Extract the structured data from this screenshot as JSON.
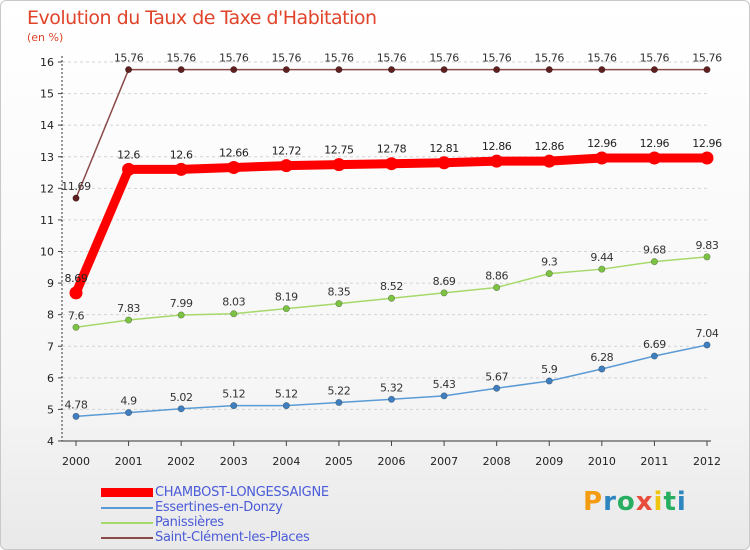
{
  "header": {
    "title": "Evolution du Taux de Taxe d'Habitation",
    "subtitle": "(en %)"
  },
  "brand": {
    "logo_text": "Proxiti",
    "logo_colors": [
      "#f39c12",
      "#2e86c1",
      "#27ae60",
      "#e74c3c",
      "#f1c40f",
      "#27ae60",
      "#2e86c1"
    ]
  },
  "chart_data": {
    "type": "line",
    "title": "Evolution du Taux de Taxe d'Habitation",
    "ylabel": "(en %)",
    "xlabel": "",
    "x": [
      "2000",
      "2001",
      "2002",
      "2003",
      "2004",
      "2005",
      "2006",
      "2007",
      "2008",
      "2009",
      "2010",
      "2011",
      "2012"
    ],
    "ylim": [
      4,
      16
    ],
    "yticks": [
      "4",
      "5",
      "6",
      "7",
      "8",
      "9",
      "10",
      "11",
      "12",
      "13",
      "14",
      "15",
      "16"
    ],
    "grid": "horizontal dashed",
    "legend_position": "bottom-left",
    "series": [
      {
        "name": "CHAMBOST-LONGESSAIGNE",
        "color": "#ff0000",
        "emphasis": "thick",
        "values": [
          8.69,
          12.6,
          12.6,
          12.66,
          12.72,
          12.75,
          12.78,
          12.81,
          12.86,
          12.86,
          12.96,
          12.96,
          12.96
        ],
        "labels": [
          "8.69",
          "12.6",
          "12.6",
          "12.66",
          "12.72",
          "12.75",
          "12.78",
          "12.81",
          "12.86",
          "12.86",
          "12.96",
          "12.96",
          "12.96"
        ]
      },
      {
        "name": "Essertines-en-Donzy",
        "color": "#5b9bd5",
        "marker": "#3f7fbf",
        "emphasis": "thin",
        "values": [
          4.78,
          4.9,
          5.02,
          5.12,
          5.12,
          5.22,
          5.32,
          5.43,
          5.67,
          5.9,
          6.28,
          6.69,
          7.04
        ],
        "labels": [
          "4.78",
          "4.9",
          "5.02",
          "5.12",
          "5.12",
          "5.22",
          "5.32",
          "5.43",
          "5.67",
          "5.9",
          "6.28",
          "6.69",
          "7.04"
        ]
      },
      {
        "name": "Panissières",
        "color": "#a6d96a",
        "marker": "#7cc243",
        "emphasis": "thin",
        "values": [
          7.6,
          7.83,
          7.99,
          8.03,
          8.19,
          8.35,
          8.52,
          8.69,
          8.86,
          9.3,
          9.44,
          9.68,
          9.83
        ],
        "labels": [
          "7.6",
          "7.83",
          "7.99",
          "8.03",
          "8.19",
          "8.35",
          "8.52",
          "8.69",
          "8.86",
          "9.3",
          "9.44",
          "9.68",
          "9.83"
        ]
      },
      {
        "name": "Saint-Clément-les-Places",
        "color": "#8b4a4a",
        "marker": "#5e1f1f",
        "emphasis": "thin",
        "values": [
          11.69,
          15.76,
          15.76,
          15.76,
          15.76,
          15.76,
          15.76,
          15.76,
          15.76,
          15.76,
          15.76,
          15.76,
          15.76
        ],
        "labels": [
          "11.69",
          "15.76",
          "15.76",
          "15.76",
          "15.76",
          "15.76",
          "15.76",
          "15.76",
          "15.76",
          "15.76",
          "15.76",
          "15.76",
          "15.76"
        ]
      }
    ]
  }
}
